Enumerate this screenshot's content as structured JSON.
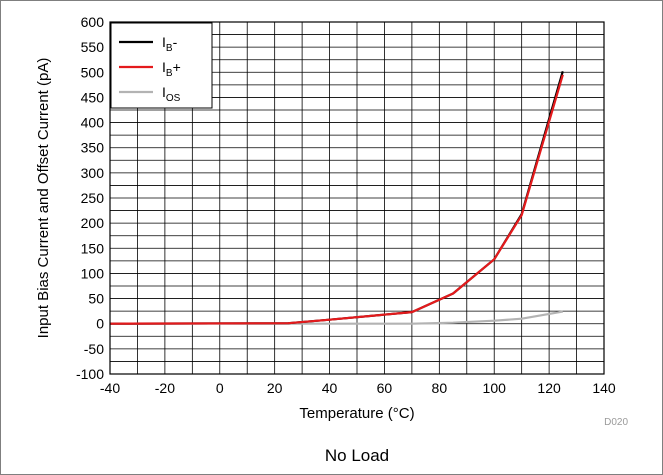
{
  "chart_data": {
    "type": "line",
    "xlabel": "Temperature (°C)",
    "ylabel": "Input Bias Current and Offset Current (pA)",
    "xlim": [
      -40,
      140
    ],
    "ylim": [
      -100,
      600
    ],
    "xticks": [
      "-40",
      "-20",
      "0",
      "20",
      "40",
      "60",
      "80",
      "100",
      "120",
      "140"
    ],
    "yticks": [
      "-100",
      "-50",
      "0",
      "50",
      "100",
      "150",
      "200",
      "250",
      "300",
      "350",
      "400",
      "450",
      "500",
      "550",
      "600"
    ],
    "grid": true,
    "legend_position": "top-left",
    "series": [
      {
        "name": "IB-",
        "label_main": "I",
        "label_sub": "B",
        "label_suffix": "-",
        "color": "#000000",
        "points": [
          [
            -40,
            0
          ],
          [
            25,
            1
          ],
          [
            40,
            8
          ],
          [
            70,
            23
          ],
          [
            85,
            60
          ],
          [
            100,
            128
          ],
          [
            110,
            218
          ],
          [
            125,
            502
          ]
        ]
      },
      {
        "name": "IB+",
        "label_main": "I",
        "label_sub": "B",
        "label_suffix": "+",
        "color": "#e41a1c",
        "points": [
          [
            -40,
            0
          ],
          [
            25,
            1
          ],
          [
            40,
            8
          ],
          [
            70,
            23
          ],
          [
            85,
            60
          ],
          [
            100,
            128
          ],
          [
            110,
            216
          ],
          [
            125,
            495
          ]
        ]
      },
      {
        "name": "IOS",
        "label_main": "I",
        "label_sub": "OS",
        "label_suffix": "",
        "color": "#b3b3b3",
        "points": [
          [
            -40,
            0
          ],
          [
            70,
            0
          ],
          [
            85,
            2
          ],
          [
            100,
            6
          ],
          [
            110,
            10
          ],
          [
            125,
            24
          ]
        ]
      }
    ],
    "figure_code": "D020",
    "caption": "No Load"
  }
}
